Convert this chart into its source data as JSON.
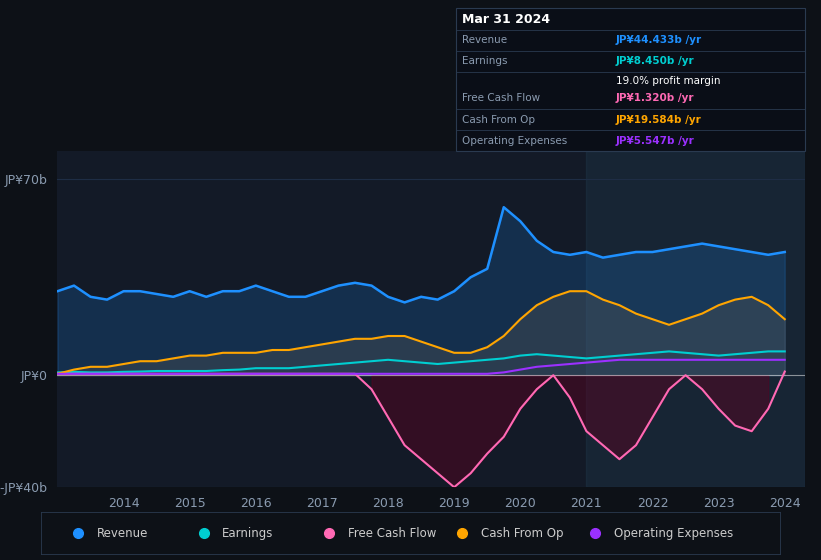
{
  "bg_color": "#0d1117",
  "plot_bg_color": "#131a27",
  "grid_color": "#1e2d45",
  "ylim": [
    -40,
    80
  ],
  "xticks": [
    2014,
    2015,
    2016,
    2017,
    2018,
    2019,
    2020,
    2021,
    2022,
    2023,
    2024
  ],
  "colors": {
    "revenue": "#1e90ff",
    "earnings": "#00ced1",
    "free_cash_flow": "#ff69b4",
    "cash_from_op": "#ffa500",
    "operating_expenses": "#9b30ff"
  },
  "legend": [
    {
      "label": "Revenue",
      "color": "#1e90ff"
    },
    {
      "label": "Earnings",
      "color": "#00ced1"
    },
    {
      "label": "Free Cash Flow",
      "color": "#ff69b4"
    },
    {
      "label": "Cash From Op",
      "color": "#ffa500"
    },
    {
      "label": "Operating Expenses",
      "color": "#9b30ff"
    }
  ],
  "tooltip": {
    "date": "Mar 31 2024",
    "revenue": "JP¥44.433b",
    "earnings": "JP¥8.450b",
    "profit_margin": "19.0%",
    "free_cash_flow": "JP¥1.320b",
    "cash_from_op": "JP¥19.584b",
    "operating_expenses": "JP¥5.547b"
  },
  "revenue": [
    30,
    32,
    28,
    27,
    30,
    30,
    29,
    28,
    30,
    28,
    30,
    30,
    32,
    30,
    28,
    28,
    30,
    32,
    33,
    32,
    28,
    26,
    28,
    27,
    30,
    35,
    38,
    60,
    55,
    48,
    44,
    43,
    44,
    42,
    43,
    44,
    44,
    45,
    46,
    47,
    46,
    45,
    44,
    43,
    44
  ],
  "earnings": [
    1,
    1.2,
    1.0,
    1.0,
    1.2,
    1.3,
    1.5,
    1.5,
    1.5,
    1.5,
    1.8,
    2.0,
    2.5,
    2.5,
    2.5,
    3.0,
    3.5,
    4.0,
    4.5,
    5.0,
    5.5,
    5.0,
    4.5,
    4.0,
    4.5,
    5.0,
    5.5,
    6.0,
    7.0,
    7.5,
    7.0,
    6.5,
    6.0,
    6.5,
    7.0,
    7.5,
    8.0,
    8.5,
    8.0,
    7.5,
    7.0,
    7.5,
    8.0,
    8.5,
    8.5
  ],
  "free_cash_flow": [
    0.5,
    0.5,
    0.5,
    0.5,
    0.5,
    0.5,
    0.5,
    0.5,
    0.5,
    0.5,
    0.5,
    0.5,
    0.5,
    0.5,
    0.5,
    0.5,
    0.5,
    0.5,
    0.5,
    -5,
    -15,
    -25,
    -30,
    -35,
    -40,
    -35,
    -28,
    -22,
    -12,
    -5,
    0,
    -8,
    -20,
    -25,
    -30,
    -25,
    -15,
    -5,
    0,
    -5,
    -12,
    -18,
    -20,
    -12,
    1.3
  ],
  "cash_from_op": [
    0.5,
    2,
    3,
    3,
    4,
    5,
    5,
    6,
    7,
    7,
    8,
    8,
    8,
    9,
    9,
    10,
    11,
    12,
    13,
    13,
    14,
    14,
    12,
    10,
    8,
    8,
    10,
    14,
    20,
    25,
    28,
    30,
    30,
    27,
    25,
    22,
    20,
    18,
    20,
    22,
    25,
    27,
    28,
    25,
    20
  ],
  "operating_expenses": [
    0.5,
    0.5,
    0.5,
    0.5,
    0.5,
    0.5,
    0.5,
    0.5,
    0.5,
    0.5,
    0.5,
    0.5,
    0.5,
    0.5,
    0.5,
    0.5,
    0.5,
    0.5,
    0.5,
    0.5,
    0.5,
    0.5,
    0.5,
    0.5,
    0.5,
    0.5,
    0.5,
    1,
    2,
    3,
    3.5,
    4,
    4.5,
    5,
    5.5,
    5.5,
    5.5,
    5.5,
    5.5,
    5.5,
    5.5,
    5.5,
    5.5,
    5.5,
    5.5
  ]
}
